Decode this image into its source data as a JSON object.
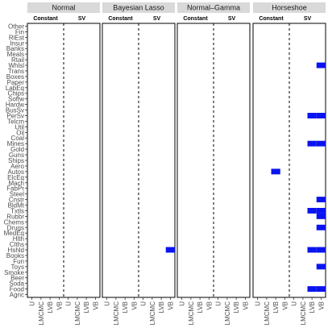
{
  "chart_data": {
    "type": "heatmap",
    "facets": [
      "Normal",
      "Bayesian Lasso",
      "Normal–Gamma",
      "Horseshoe"
    ],
    "subfacets": [
      "Constant",
      "SV"
    ],
    "x_categories": [
      "U",
      "LMCMC",
      "LVB",
      "VB",
      "U",
      "LMCMC",
      "LVB",
      "VB"
    ],
    "y_categories": [
      "Other",
      "Fin",
      "RlEst",
      "Insur",
      "Banks",
      "Meals",
      "Rtail",
      "Whlsl",
      "Trans",
      "Boxes",
      "Paper",
      "LabEq",
      "Chips",
      "Softw",
      "Hardw",
      "BusSv",
      "PerSv",
      "Telcm",
      "Util",
      "Oil",
      "Coal",
      "Mines",
      "Gold",
      "Guns",
      "Ships",
      "Aero",
      "Autos",
      "ElcEq",
      "Mach",
      "FabPr",
      "Steel",
      "Cnstr",
      "BldMt",
      "Txtls",
      "Rubbr",
      "Chems",
      "Drugs",
      "MedEq",
      "Hlth",
      "Clths",
      "Hshld",
      "Books",
      "Fun",
      "Toys",
      "Smoke",
      "Beer",
      "Soda",
      "Food",
      "Agric"
    ],
    "highlight_color": "#0a14f0",
    "cells": [
      {
        "facet": "Bayesian Lasso",
        "x_index": 7,
        "y": "Hshld"
      },
      {
        "facet": "Horseshoe",
        "x_index": 7,
        "y": "Whlsl"
      },
      {
        "facet": "Horseshoe",
        "x_index": 6,
        "y": "PerSv"
      },
      {
        "facet": "Horseshoe",
        "x_index": 7,
        "y": "PerSv"
      },
      {
        "facet": "Horseshoe",
        "x_index": 6,
        "y": "Mines"
      },
      {
        "facet": "Horseshoe",
        "x_index": 7,
        "y": "Mines"
      },
      {
        "facet": "Horseshoe",
        "x_index": 2,
        "y": "Autos"
      },
      {
        "facet": "Horseshoe",
        "x_index": 7,
        "y": "Cnstr"
      },
      {
        "facet": "Horseshoe",
        "x_index": 6,
        "y": "Txtls"
      },
      {
        "facet": "Horseshoe",
        "x_index": 7,
        "y": "Txtls"
      },
      {
        "facet": "Horseshoe",
        "x_index": 7,
        "y": "Rubbr"
      },
      {
        "facet": "Horseshoe",
        "x_index": 7,
        "y": "Drugs"
      },
      {
        "facet": "Horseshoe",
        "x_index": 6,
        "y": "Hshld"
      },
      {
        "facet": "Horseshoe",
        "x_index": 7,
        "y": "Hshld"
      },
      {
        "facet": "Horseshoe",
        "x_index": 7,
        "y": "Toys"
      },
      {
        "facet": "Horseshoe",
        "x_index": 6,
        "y": "Food"
      },
      {
        "facet": "Horseshoe",
        "x_index": 7,
        "y": "Food"
      }
    ]
  }
}
